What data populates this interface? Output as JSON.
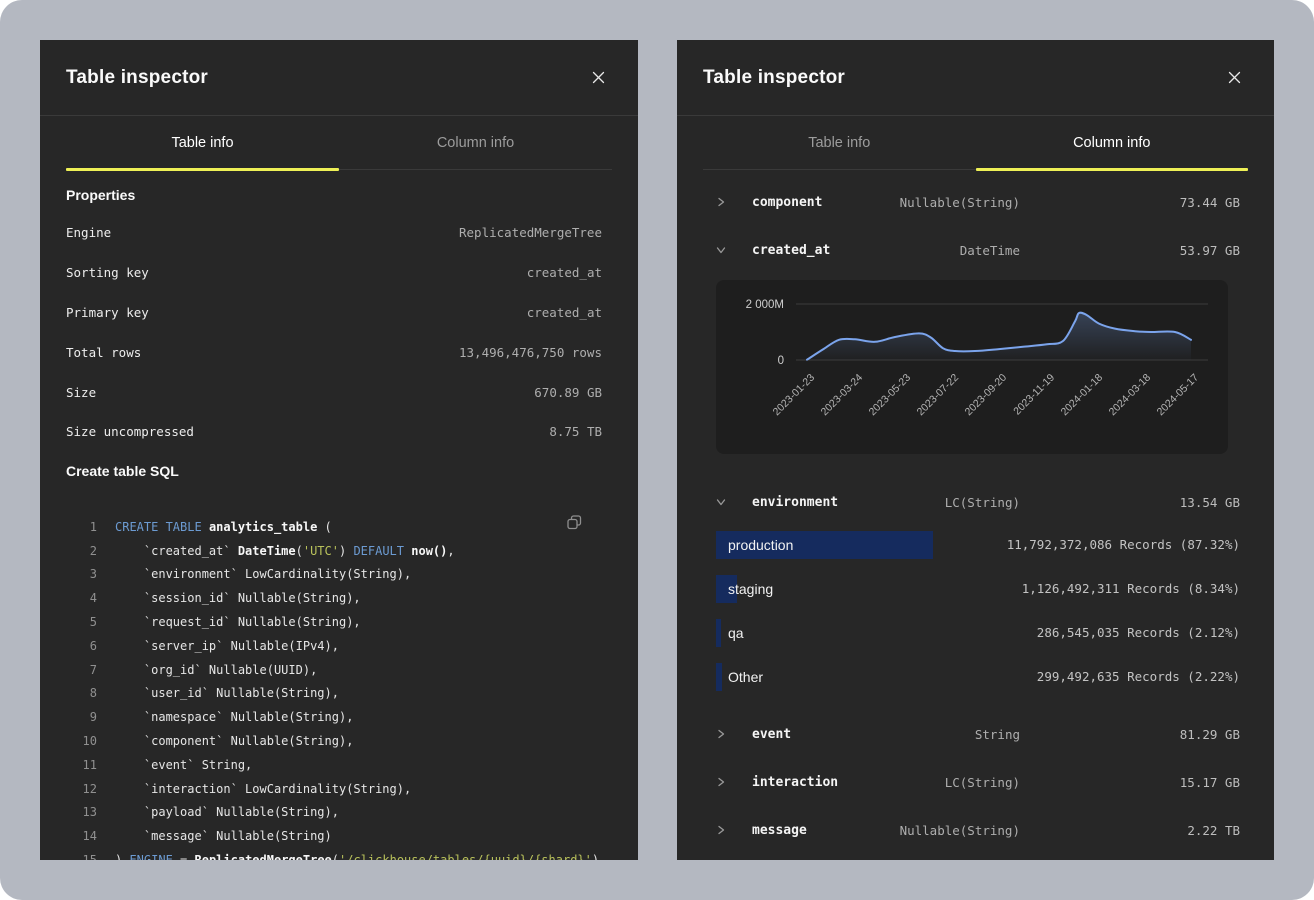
{
  "colors": {
    "backdrop": "#b4b8c1",
    "panel_bg": "#272727",
    "accent_yellow": "#eef056",
    "bar_blue": "#152b5e",
    "chart_line_blue": "#7ba4ec",
    "sql_keyword_blue": "#6c9bd2",
    "sql_string_olive": "#b9c25b"
  },
  "left_panel": {
    "title": "Table inspector",
    "tabs": [
      {
        "label": "Table info",
        "active": true
      },
      {
        "label": "Column info",
        "active": false
      }
    ],
    "properties_heading": "Properties",
    "properties": [
      {
        "label": "Engine",
        "value": "ReplicatedMergeTree"
      },
      {
        "label": "Sorting key",
        "value": "created_at"
      },
      {
        "label": "Primary key",
        "value": "created_at"
      },
      {
        "label": "Total rows",
        "value": "13,496,476,750 rows"
      },
      {
        "label": "Size",
        "value": "670.89 GB"
      },
      {
        "label": "Size uncompressed",
        "value": "8.75 TB"
      }
    ],
    "sql_heading": "Create table SQL",
    "copy_icon": "copy-icon",
    "sql_lines": [
      {
        "num": 1,
        "tokens": [
          [
            "kw",
            "CREATE TABLE"
          ],
          [
            "pl",
            " "
          ],
          [
            "b",
            "analytics_table"
          ],
          [
            "pl",
            " ("
          ]
        ]
      },
      {
        "num": 2,
        "tokens": [
          [
            "pl",
            "    `created_at` "
          ],
          [
            "b",
            "DateTime"
          ],
          [
            "pl",
            "("
          ],
          [
            "str",
            "'UTC'"
          ],
          [
            "pl",
            ") "
          ],
          [
            "kw",
            "DEFAULT"
          ],
          [
            "pl",
            " "
          ],
          [
            "b",
            "now()"
          ],
          [
            "pl",
            ","
          ]
        ]
      },
      {
        "num": 3,
        "tokens": [
          [
            "pl",
            "    `environment` LowCardinality(String),"
          ]
        ]
      },
      {
        "num": 4,
        "tokens": [
          [
            "pl",
            "    `session_id` Nullable(String),"
          ]
        ]
      },
      {
        "num": 5,
        "tokens": [
          [
            "pl",
            "    `request_id` Nullable(String),"
          ]
        ]
      },
      {
        "num": 6,
        "tokens": [
          [
            "pl",
            "    `server_ip` Nullable(IPv4),"
          ]
        ]
      },
      {
        "num": 7,
        "tokens": [
          [
            "pl",
            "    `org_id` Nullable(UUID),"
          ]
        ]
      },
      {
        "num": 8,
        "tokens": [
          [
            "pl",
            "    `user_id` Nullable(String),"
          ]
        ]
      },
      {
        "num": 9,
        "tokens": [
          [
            "pl",
            "    `namespace` Nullable(String),"
          ]
        ]
      },
      {
        "num": 10,
        "tokens": [
          [
            "pl",
            "    `component` Nullable(String),"
          ]
        ]
      },
      {
        "num": 11,
        "tokens": [
          [
            "pl",
            "    `event` String,"
          ]
        ]
      },
      {
        "num": 12,
        "tokens": [
          [
            "pl",
            "    `interaction` LowCardinality(String),"
          ]
        ]
      },
      {
        "num": 13,
        "tokens": [
          [
            "pl",
            "    `payload` Nullable(String),"
          ]
        ]
      },
      {
        "num": 14,
        "tokens": [
          [
            "pl",
            "    `message` Nullable(String)"
          ]
        ]
      },
      {
        "num": 15,
        "tokens": [
          [
            "pl",
            ") "
          ],
          [
            "kw",
            "ENGINE"
          ],
          [
            "pl",
            " = "
          ],
          [
            "b",
            "ReplicatedMergeTree"
          ],
          [
            "pl",
            "("
          ],
          [
            "str",
            "'/clickhouse/tables/{uuid}/{shard}'"
          ],
          [
            "pl",
            ")"
          ]
        ]
      }
    ]
  },
  "right_panel": {
    "title": "Table inspector",
    "tabs": [
      {
        "label": "Table info",
        "active": false
      },
      {
        "label": "Column info",
        "active": true
      }
    ],
    "columns": [
      {
        "name": "component",
        "type": "Nullable(String)",
        "size": "73.44 GB",
        "expanded": false
      },
      {
        "name": "created_at",
        "type": "DateTime",
        "size": "53.97 GB",
        "expanded": true,
        "detail": "chart"
      },
      {
        "name": "environment",
        "type": "LC(String)",
        "size": "13.54 GB",
        "expanded": true,
        "detail": "values",
        "values": [
          {
            "label": "production",
            "records": "11,792,372,086 Records (87.32%)",
            "pct": 87.32
          },
          {
            "label": "staging",
            "records": "1,126,492,311 Records (8.34%)",
            "pct": 8.34
          },
          {
            "label": "qa",
            "records": "286,545,035 Records (2.12%)",
            "pct": 2.12
          },
          {
            "label": "Other",
            "records": "299,492,635 Records (2.22%)",
            "pct": 2.22
          }
        ]
      },
      {
        "name": "event",
        "type": "String",
        "size": "81.29 GB",
        "expanded": false
      },
      {
        "name": "interaction",
        "type": "LC(String)",
        "size": "15.17 GB",
        "expanded": false
      },
      {
        "name": "message",
        "type": "Nullable(String)",
        "size": "2.22 TB",
        "expanded": false
      }
    ]
  },
  "chart_data": {
    "type": "area",
    "column": "created_at",
    "ylim": [
      0,
      2000
    ],
    "unit": "M records",
    "grid": true,
    "legend": false,
    "yticks": [
      {
        "value": 2000,
        "label": "2 000M"
      },
      {
        "value": 0,
        "label": "0"
      }
    ],
    "xticks": [
      "2023-01-23",
      "2023-03-24",
      "2023-05-23",
      "2023-07-22",
      "2023-09-20",
      "2023-11-19",
      "2024-01-18",
      "2024-03-18",
      "2024-05-17"
    ],
    "points": [
      [
        "2023-01-23",
        10
      ],
      [
        "2023-02-12",
        380
      ],
      [
        "2023-03-04",
        720
      ],
      [
        "2023-03-24",
        740
      ],
      [
        "2023-04-18",
        650
      ],
      [
        "2023-05-13",
        820
      ],
      [
        "2023-06-12",
        950
      ],
      [
        "2023-06-27",
        800
      ],
      [
        "2023-07-12",
        420
      ],
      [
        "2023-07-27",
        320
      ],
      [
        "2023-08-21",
        320
      ],
      [
        "2023-09-20",
        390
      ],
      [
        "2023-10-20",
        470
      ],
      [
        "2023-11-19",
        560
      ],
      [
        "2023-12-09",
        680
      ],
      [
        "2023-12-24",
        1380
      ],
      [
        "2023-12-29",
        1680
      ],
      [
        "2024-01-08",
        1600
      ],
      [
        "2024-01-23",
        1300
      ],
      [
        "2024-02-12",
        1120
      ],
      [
        "2024-03-08",
        1030
      ],
      [
        "2024-03-28",
        1000
      ],
      [
        "2024-04-27",
        1000
      ],
      [
        "2024-05-17",
        720
      ]
    ]
  }
}
